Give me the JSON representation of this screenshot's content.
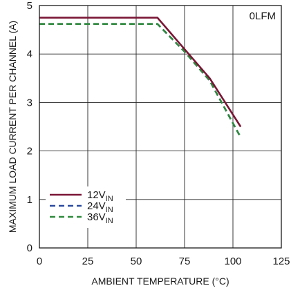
{
  "chart_data": {
    "type": "line",
    "title": "",
    "xlabel": "AMBIENT TEMPERATURE (°C)",
    "ylabel": "MAXIMUM LOAD CURRENT PER CHANNEL (A)",
    "xlim": [
      0,
      125
    ],
    "ylim": [
      0,
      5
    ],
    "xticks": [
      0,
      25,
      50,
      75,
      100,
      125
    ],
    "yticks": [
      0,
      1,
      2,
      3,
      4,
      5
    ],
    "grid": true,
    "annotation": "0LFM",
    "legend_placement": "bottom-left",
    "series": [
      {
        "name_main": "12V",
        "name_sub": "IN",
        "color": "#7a1535",
        "dash": "solid",
        "x": [
          0,
          61,
          75,
          88,
          104
        ],
        "y": [
          4.75,
          4.75,
          4.1,
          3.5,
          2.5
        ]
      },
      {
        "name_main": "24V",
        "name_sub": "IN",
        "color": "#2b4aa0",
        "dash": "dashed",
        "x": [
          0,
          61,
          75,
          88,
          104
        ],
        "y": [
          4.62,
          4.62,
          4.05,
          3.45,
          2.28
        ]
      },
      {
        "name_main": "36V",
        "name_sub": "IN",
        "color": "#2f8a3c",
        "dash": "dashed",
        "x": [
          0,
          61,
          75,
          88,
          104
        ],
        "y": [
          4.62,
          4.62,
          4.05,
          3.45,
          2.28
        ]
      }
    ]
  }
}
